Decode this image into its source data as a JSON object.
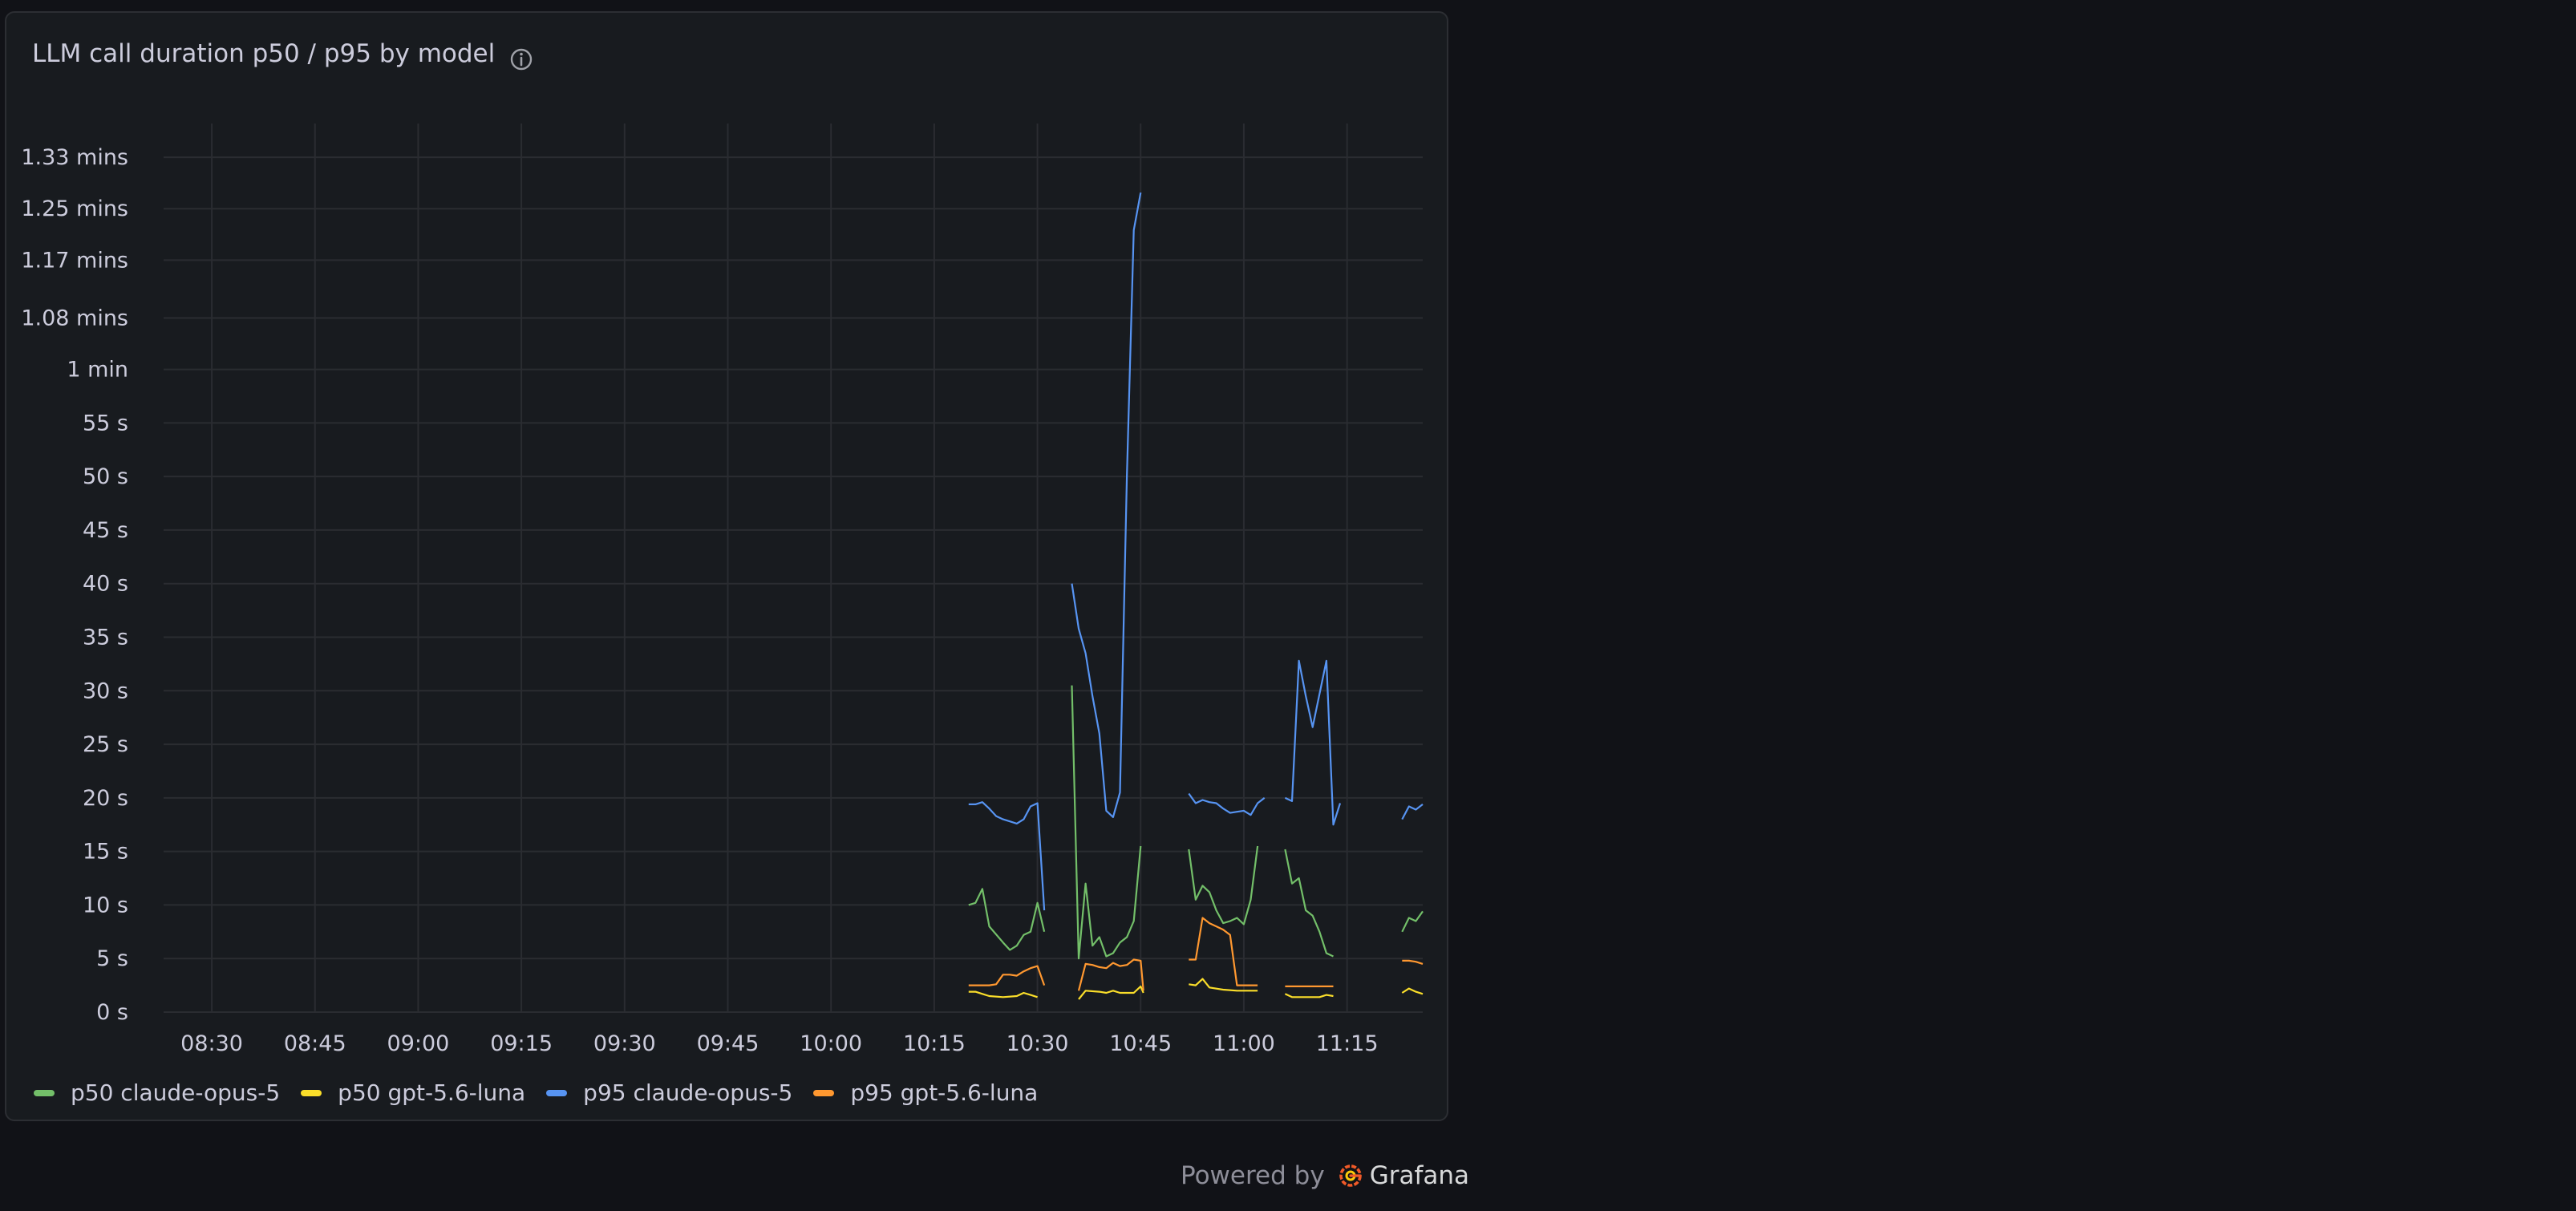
{
  "panel": {
    "title": "LLM call duration p50 / p95 by model",
    "info_icon": "info-circle-icon"
  },
  "footer": {
    "powered_by": "Powered by",
    "brand": "Grafana",
    "logo_icon": "grafana-logo-icon"
  },
  "chart_data": {
    "type": "line",
    "xlabel": "",
    "ylabel": "",
    "grid": true,
    "legend_position": "bottom-left",
    "x_ticks": [
      "08:30",
      "08:45",
      "09:00",
      "09:15",
      "09:30",
      "09:45",
      "10:00",
      "10:15",
      "10:30",
      "10:45",
      "11:00",
      "11:15"
    ],
    "x_range": [
      "08:23",
      "11:26"
    ],
    "y_ticks": [
      "0 s",
      "5 s",
      "10 s",
      "15 s",
      "20 s",
      "25 s",
      "30 s",
      "35 s",
      "40 s",
      "45 s",
      "50 s",
      "55 s",
      "1 min",
      "1.08 mins",
      "1.17 mins",
      "1.25 mins",
      "1.33 mins"
    ],
    "y_unit": "seconds",
    "ylim": [
      0,
      84
    ],
    "series": [
      {
        "name": "p50 claude-opus-5",
        "color": "#73bf69",
        "segments": [
          [
            [
              "10:20",
              10
            ],
            [
              "10:21",
              10.2
            ],
            [
              "10:22",
              11.5
            ],
            [
              "10:23",
              8
            ],
            [
              "10:25",
              6.5
            ],
            [
              "10:26",
              5.8
            ],
            [
              "10:27",
              6.2
            ],
            [
              "10:28",
              7.2
            ],
            [
              "10:29",
              7.5
            ],
            [
              "10:30",
              10.2
            ],
            [
              "10:31",
              7.5
            ]
          ],
          [
            [
              "10:35",
              30.5
            ],
            [
              "10:36",
              5
            ],
            [
              "10:37",
              12
            ],
            [
              "10:38",
              6.2
            ],
            [
              "10:39",
              7
            ],
            [
              "10:40",
              5.2
            ],
            [
              "10:41",
              5.5
            ],
            [
              "10:42",
              6.5
            ],
            [
              "10:43",
              7
            ],
            [
              "10:44",
              8.5
            ],
            [
              "10:45",
              15.5
            ]
          ],
          [
            [
              "10:52",
              15.2
            ],
            [
              "10:53",
              10.5
            ],
            [
              "10:54",
              11.8
            ],
            [
              "10:55",
              11.2
            ],
            [
              "10:56",
              9.5
            ],
            [
              "10:57",
              8.3
            ],
            [
              "10:58",
              8.5
            ],
            [
              "10:59",
              8.8
            ],
            [
              "11:00",
              8.2
            ],
            [
              "11:01",
              10.5
            ],
            [
              "11:02",
              15.5
            ]
          ],
          [
            [
              "11:06",
              15.2
            ],
            [
              "11:07",
              12
            ],
            [
              "11:08",
              12.5
            ],
            [
              "11:09",
              9.5
            ],
            [
              "11:10",
              9
            ],
            [
              "11:11",
              7.5
            ],
            [
              "11:12",
              5.5
            ],
            [
              "11:13",
              5.2
            ]
          ],
          [
            [
              "11:23",
              7.5
            ],
            [
              "11:24",
              8.8
            ],
            [
              "11:25",
              8.5
            ],
            [
              "11:26",
              9.4
            ]
          ]
        ]
      },
      {
        "name": "p50 gpt-5.6-luna",
        "color": "#fade2a",
        "segments": [
          [
            [
              "10:20",
              1.9
            ],
            [
              "10:21",
              1.9
            ],
            [
              "10:22",
              1.7
            ],
            [
              "10:23",
              1.5
            ],
            [
              "10:25",
              1.4
            ],
            [
              "10:27",
              1.5
            ],
            [
              "10:28",
              1.8
            ],
            [
              "10:29",
              1.6
            ],
            [
              "10:30",
              1.4
            ]
          ],
          [
            [
              "10:36",
              1.2
            ],
            [
              "10:37",
              2
            ],
            [
              "10:39",
              1.9
            ],
            [
              "10:40",
              1.8
            ],
            [
              "10:41",
              2
            ],
            [
              "10:42",
              1.8
            ],
            [
              "10:44",
              1.8
            ],
            [
              "10:45",
              2.4
            ],
            [
              "10:45.4",
              1.8
            ]
          ],
          [
            [
              "10:52",
              2.6
            ],
            [
              "10:53",
              2.5
            ],
            [
              "10:54",
              3.1
            ],
            [
              "10:55",
              2.3
            ],
            [
              "10:57",
              2.1
            ],
            [
              "10:59",
              2
            ],
            [
              "11:02",
              2
            ]
          ],
          [
            [
              "11:06",
              1.7
            ],
            [
              "11:07",
              1.4
            ],
            [
              "11:09",
              1.4
            ],
            [
              "11:11",
              1.4
            ],
            [
              "11:12",
              1.6
            ],
            [
              "11:13",
              1.5
            ]
          ],
          [
            [
              "11:23",
              1.8
            ],
            [
              "11:24",
              2.2
            ],
            [
              "11:25",
              1.9
            ],
            [
              "11:26",
              1.7
            ]
          ]
        ]
      },
      {
        "name": "p95 claude-opus-5",
        "color": "#5794f2",
        "segments": [
          [
            [
              "10:20",
              19.4
            ],
            [
              "10:21",
              19.4
            ],
            [
              "10:22",
              19.6
            ],
            [
              "10:23",
              19
            ],
            [
              "10:24",
              18.3
            ],
            [
              "10:25",
              18
            ],
            [
              "10:26",
              17.8
            ],
            [
              "10:27",
              17.6
            ],
            [
              "10:28",
              18
            ],
            [
              "10:29",
              19.2
            ],
            [
              "10:30",
              19.5
            ],
            [
              "10:31",
              9.5
            ]
          ],
          [
            [
              "10:35",
              40
            ],
            [
              "10:36",
              35.8
            ],
            [
              "10:37",
              33.5
            ],
            [
              "10:38",
              29.5
            ],
            [
              "10:39",
              26
            ],
            [
              "10:40",
              18.8
            ],
            [
              "10:41",
              18.2
            ],
            [
              "10:42",
              20.5
            ],
            [
              "10:43",
              50
            ],
            [
              "10:44",
              73
            ],
            [
              "10:45",
              76.5
            ]
          ],
          [
            [
              "10:52",
              20.4
            ],
            [
              "10:53",
              19.5
            ],
            [
              "10:54",
              19.8
            ],
            [
              "10:55",
              19.6
            ],
            [
              "10:56",
              19.5
            ],
            [
              "10:57",
              19
            ],
            [
              "10:58",
              18.6
            ],
            [
              "10:59",
              18.7
            ],
            [
              "11:00",
              18.8
            ],
            [
              "11:01",
              18.4
            ],
            [
              "11:02",
              19.5
            ],
            [
              "11:03",
              20
            ]
          ],
          [
            [
              "11:06",
              20
            ],
            [
              "11:07",
              19.7
            ],
            [
              "11:08",
              32.8
            ],
            [
              "11:09",
              29.5
            ],
            [
              "11:10",
              26.6
            ],
            [
              "11:12",
              32.8
            ],
            [
              "11:13",
              17.5
            ],
            [
              "11:14",
              19.5
            ]
          ],
          [
            [
              "11:23",
              18
            ],
            [
              "11:24",
              19.2
            ],
            [
              "11:25",
              18.9
            ],
            [
              "11:26",
              19.4
            ]
          ]
        ]
      },
      {
        "name": "p95 gpt-5.6-luna",
        "color": "#ff9830",
        "segments": [
          [
            [
              "10:20",
              2.5
            ],
            [
              "10:21",
              2.5
            ],
            [
              "10:23",
              2.5
            ],
            [
              "10:24",
              2.6
            ],
            [
              "10:25",
              3.5
            ],
            [
              "10:26",
              3.5
            ],
            [
              "10:27",
              3.4
            ],
            [
              "10:28",
              3.8
            ],
            [
              "10:29",
              4.1
            ],
            [
              "10:30",
              4.3
            ],
            [
              "10:31",
              2.5
            ]
          ],
          [
            [
              "10:36",
              2
            ],
            [
              "10:37",
              4.5
            ],
            [
              "10:38",
              4.4
            ],
            [
              "10:39",
              4.2
            ],
            [
              "10:40",
              4.1
            ],
            [
              "10:41",
              4.6
            ],
            [
              "10:42",
              4.3
            ],
            [
              "10:43",
              4.4
            ],
            [
              "10:44",
              4.9
            ],
            [
              "10:45",
              4.8
            ],
            [
              "10:45.4",
              2
            ]
          ],
          [
            [
              "10:52",
              4.9
            ],
            [
              "10:53",
              4.9
            ],
            [
              "10:54",
              8.8
            ],
            [
              "10:55",
              8.3
            ],
            [
              "10:56",
              8
            ],
            [
              "10:57",
              7.7
            ],
            [
              "10:58",
              7.2
            ],
            [
              "10:59",
              2.5
            ],
            [
              "11:02",
              2.5
            ]
          ],
          [
            [
              "11:06",
              2.4
            ],
            [
              "11:09",
              2.4
            ],
            [
              "11:11",
              2.4
            ],
            [
              "11:13",
              2.4
            ]
          ],
          [
            [
              "11:23",
              4.8
            ],
            [
              "11:24",
              4.8
            ],
            [
              "11:25",
              4.7
            ],
            [
              "11:26",
              4.5
            ]
          ]
        ]
      }
    ]
  }
}
